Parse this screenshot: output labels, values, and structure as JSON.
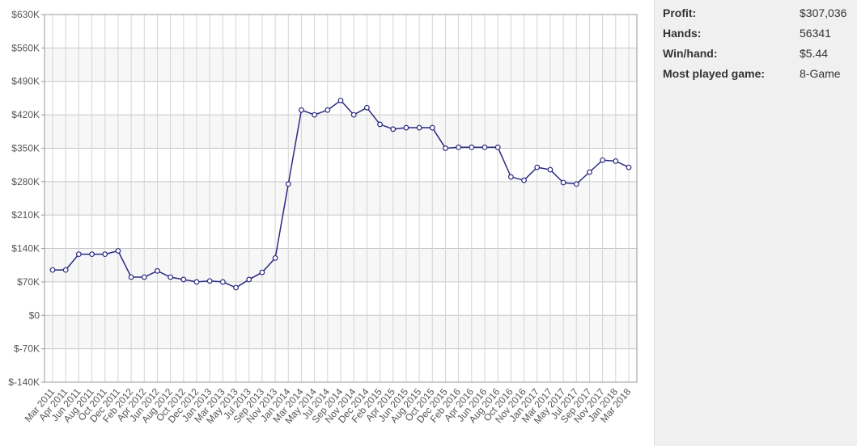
{
  "chart_data": {
    "type": "line",
    "categories": [
      "Mar 2011",
      "Apr 2011",
      "Jun 2011",
      "Aug 2011",
      "Oct 2011",
      "Dec 2011",
      "Feb 2012",
      "Apr 2012",
      "Jun 2012",
      "Aug 2012",
      "Oct 2012",
      "Dec 2012",
      "Jan 2013",
      "Mar 2013",
      "May 2013",
      "Jul 2013",
      "Sep 2013",
      "Nov 2013",
      "Jan 2014",
      "Mar 2014",
      "May 2014",
      "Jul 2014",
      "Sep 2014",
      "Nov 2014",
      "Dec 2014",
      "Feb 2015",
      "Apr 2015",
      "Jun 2015",
      "Aug 2015",
      "Oct 2015",
      "Dec 2015",
      "Feb 2016",
      "Apr 2016",
      "Jun 2016",
      "Aug 2016",
      "Oct 2016",
      "Nov 2016",
      "Jan 2017",
      "Mar 2017",
      "May 2017",
      "Jul 2017",
      "Sep 2017",
      "Nov 2017",
      "Jan 2018",
      "Mar 2018"
    ],
    "series": [
      {
        "color": "#2a2a80",
        "values": [
          95000,
          95000,
          128000,
          128000,
          128000,
          135000,
          80000,
          80000,
          93000,
          80000,
          75000,
          70000,
          72000,
          70000,
          58000,
          75000,
          90000,
          120000,
          275000,
          430000,
          420000,
          430000,
          450000,
          420000,
          435000,
          400000,
          390000,
          393000,
          393000,
          393000,
          350000,
          352000,
          352000,
          352000,
          352000,
          290000,
          283000,
          310000,
          305000,
          278000,
          275000,
          300000,
          325000,
          323000,
          310000
        ]
      }
    ],
    "ylim": [
      -140000,
      630000
    ],
    "yticks": [
      {
        "value": -140000,
        "label": "$-140K"
      },
      {
        "value": -70000,
        "label": "$-70K"
      },
      {
        "value": 0,
        "label": "$0"
      },
      {
        "value": 70000,
        "label": "$70K"
      },
      {
        "value": 140000,
        "label": "$140K"
      },
      {
        "value": 210000,
        "label": "$210K"
      },
      {
        "value": 280000,
        "label": "$280K"
      },
      {
        "value": 350000,
        "label": "$350K"
      },
      {
        "value": 420000,
        "label": "$420K"
      },
      {
        "value": 490000,
        "label": "$490K"
      },
      {
        "value": 560000,
        "label": "$560K"
      },
      {
        "value": 630000,
        "label": "$630K"
      }
    ],
    "grid": true
  },
  "stats": [
    {
      "label": "Profit:",
      "value": "$307,036"
    },
    {
      "label": "Hands:",
      "value": "56341"
    },
    {
      "label": "Win/hand:",
      "value": "$5.44"
    },
    {
      "label": "Most played game:",
      "value": "8-Game"
    }
  ]
}
